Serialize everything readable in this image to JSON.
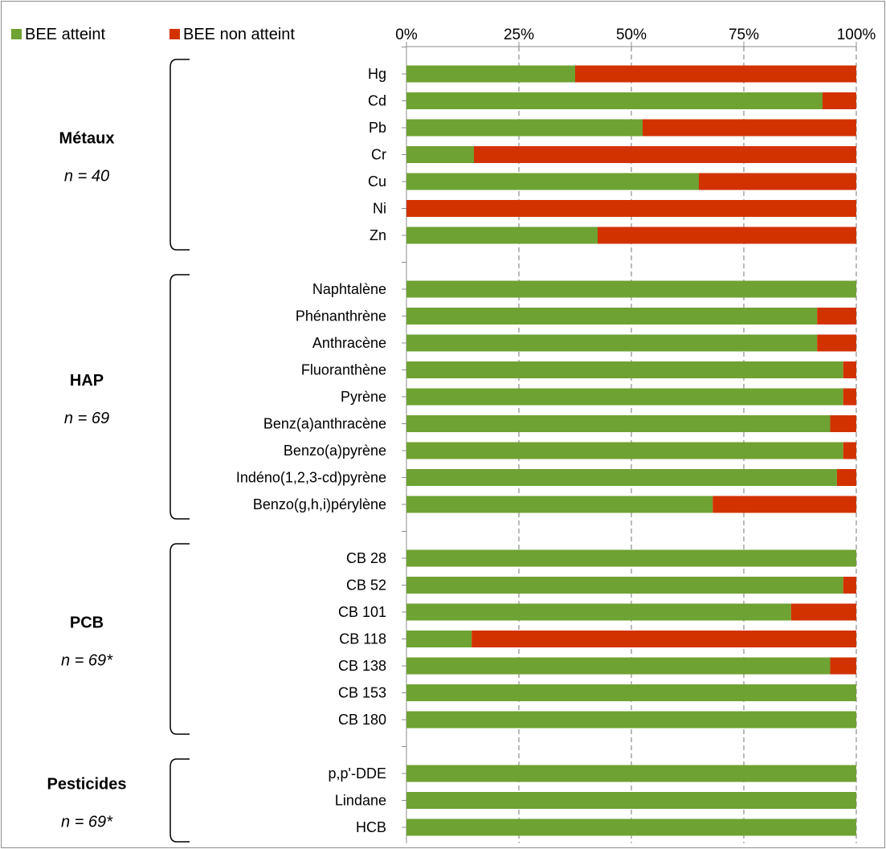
{
  "chart_data": {
    "type": "bar",
    "stacked": true,
    "orientation": "horizontal",
    "percent_stacked": true,
    "xlim": [
      0,
      100
    ],
    "x_ticks": [
      "0%",
      "25%",
      "50%",
      "75%",
      "100%"
    ],
    "x_axis_position": "top",
    "grid": "vertical dashed",
    "legend_position": "top-left",
    "series": [
      {
        "name": "BEE atteint",
        "color": "#6ea232"
      },
      {
        "name": "BEE non atteint",
        "color": "#d23200"
      }
    ],
    "groups": [
      {
        "title": "Métaux",
        "n": "n = 40",
        "categories": [
          "Hg",
          "Cd",
          "Pb",
          "Cr",
          "Cu",
          "Ni",
          "Zn"
        ],
        "atteint": [
          37.5,
          92.5,
          52.5,
          15,
          65,
          0,
          42.5
        ]
      },
      {
        "title": "HAP",
        "n": "n = 69",
        "categories": [
          "Naphtalène",
          "Phénanthrène",
          "Anthracène",
          "Fluoranthène",
          "Pyrène",
          "Benz(a)anthracène",
          "Benzo(a)pyrène",
          "Indéno(1,2,3-cd)pyrène",
          "Benzo(g,h,i)pérylène"
        ],
        "atteint": [
          100,
          91.3,
          91.3,
          97.1,
          97.1,
          94.2,
          97.1,
          95.7,
          68.1
        ]
      },
      {
        "title": "PCB",
        "n": "n = 69*",
        "categories": [
          "CB 28",
          "CB 52",
          "CB 101",
          "CB 118",
          "CB 138",
          "CB 153",
          "CB 180"
        ],
        "atteint": [
          100,
          97.1,
          85.5,
          14.5,
          94.2,
          100,
          100
        ]
      },
      {
        "title": "Pesticides",
        "n": "n = 69*",
        "categories": [
          "p,p'-DDE",
          "Lindane",
          "HCB"
        ],
        "atteint": [
          100,
          100,
          100
        ]
      }
    ]
  }
}
